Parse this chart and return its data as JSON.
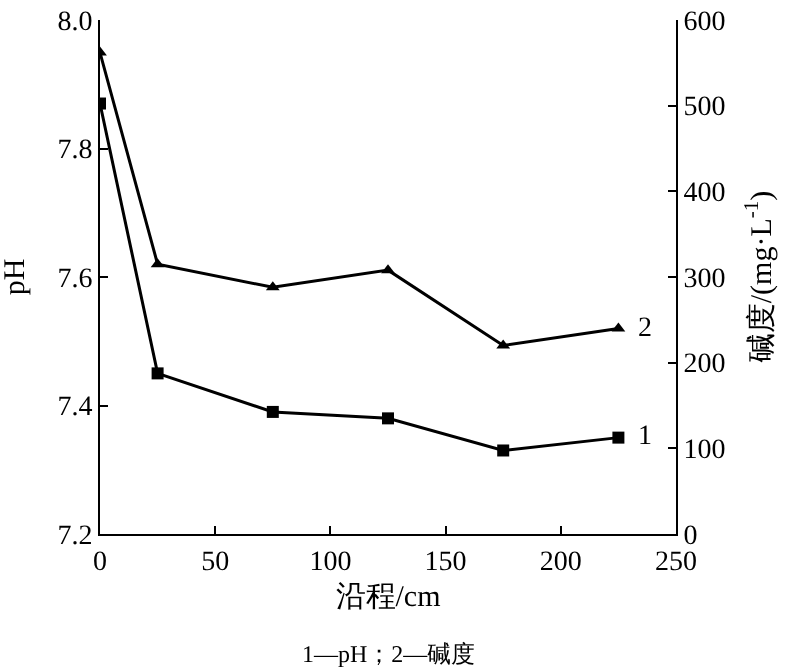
{
  "chart_data": {
    "type": "line",
    "xlabel": "沿程/cm",
    "ylabel": "pH",
    "y2label": "碱度/(mg·L$^{-1}$)",
    "x": [
      0,
      25,
      75,
      125,
      175,
      225
    ],
    "series": [
      {
        "name": "1",
        "color": "#000000",
        "marker": "square",
        "values": [
          7.87,
          7.45,
          7.39,
          7.38,
          7.33,
          7.35
        ]
      },
      {
        "name": "2",
        "color": "#000000",
        "marker": "triangle",
        "axis": "y2",
        "values": [
          562,
          315,
          288,
          308,
          220,
          240
        ]
      }
    ],
    "xlim": [
      0,
      250
    ],
    "xticks": [
      0,
      50,
      100,
      150,
      200,
      250
    ],
    "ylim": [
      7.2,
      8.0
    ],
    "yticks": [
      {
        "value": 7.2,
        "label": "7.2"
      },
      {
        "value": 7.4,
        "label": "7.4"
      },
      {
        "value": 7.6,
        "label": "7.6"
      },
      {
        "value": 7.8,
        "label": "7.8"
      },
      {
        "value": 8.0,
        "label": "8.0"
      }
    ],
    "y2lim": [
      0,
      600
    ],
    "y2ticks": [
      0,
      100,
      200,
      300,
      400,
      500,
      600
    ],
    "grid": false,
    "legend": false,
    "line_style": "solid",
    "annotations": [
      "1—pH；2—碱度"
    ]
  }
}
